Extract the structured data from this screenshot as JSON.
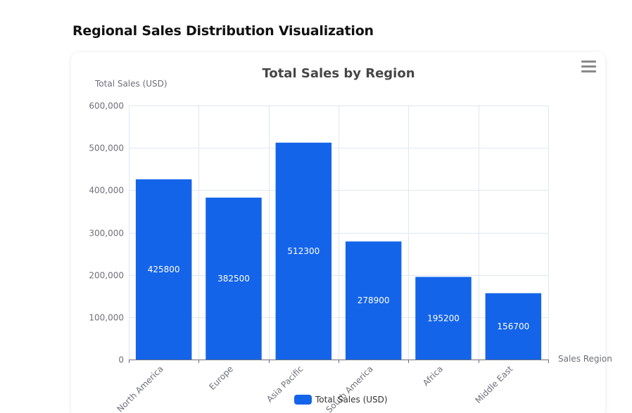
{
  "page": {
    "heading": "Regional Sales Distribution Visualization"
  },
  "toolbox": {
    "menu_icon": "hamburger-menu-icon"
  },
  "colors": {
    "bar": "#1464ea",
    "grid": "#e0e6f1",
    "axis": "#6e7079"
  },
  "chart_data": {
    "type": "bar",
    "title": "Total Sales by Region",
    "xlabel": "Sales Region",
    "ylabel": "Total Sales (USD)",
    "categories": [
      "North America",
      "Europe",
      "Asia Pacific",
      "South America",
      "Africa",
      "Middle East"
    ],
    "series": [
      {
        "name": "Total Sales (USD)",
        "values": [
          425800,
          382500,
          512300,
          278900,
          195200,
          156700
        ]
      }
    ],
    "ylim": [
      0,
      600000
    ],
    "yticks": [
      0,
      100000,
      200000,
      300000,
      400000,
      500000,
      600000
    ],
    "ytick_labels": [
      "0",
      "100,000",
      "200,000",
      "300,000",
      "400,000",
      "500,000",
      "600,000"
    ],
    "grid": true,
    "legend_position": "bottom-center",
    "show_data_labels": true
  }
}
